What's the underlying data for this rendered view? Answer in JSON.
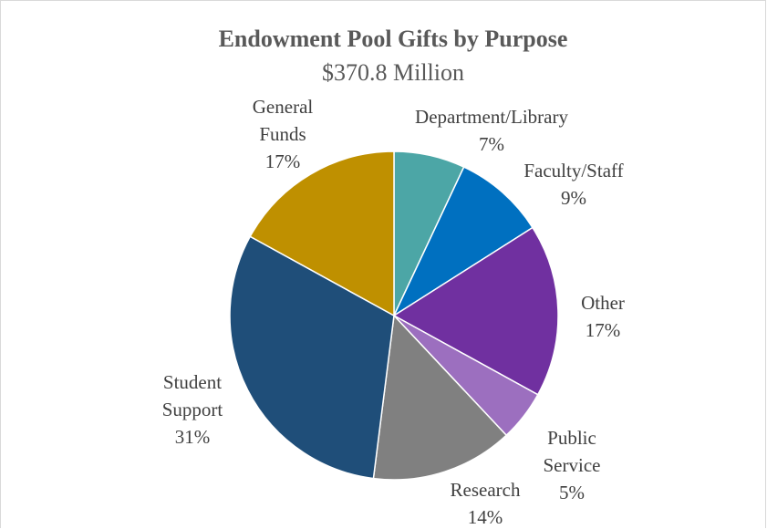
{
  "chart_data": {
    "type": "pie",
    "title": "Endowment Pool Gifts by Purpose",
    "subtitle": "$370.8 Million",
    "start_angle_deg": 0,
    "direction": "clockwise",
    "slices": [
      {
        "label_lines": [
          "Department/Library"
        ],
        "percent_label": "7%",
        "value": 7,
        "color": "#4ca6a6"
      },
      {
        "label_lines": [
          "Faculty/Staff"
        ],
        "percent_label": "9%",
        "value": 9,
        "color": "#0070c0"
      },
      {
        "label_lines": [
          "Other"
        ],
        "percent_label": "17%",
        "value": 17,
        "color": "#7030a0"
      },
      {
        "label_lines": [
          "Public",
          "Service"
        ],
        "percent_label": "5%",
        "value": 5,
        "color": "#9c6fbf"
      },
      {
        "label_lines": [
          "Research"
        ],
        "percent_label": "14%",
        "value": 14,
        "color": "#808080"
      },
      {
        "label_lines": [
          "Student",
          "Support"
        ],
        "percent_label": "31%",
        "value": 31,
        "color": "#1f4e79"
      },
      {
        "label_lines": [
          "General",
          "Funds"
        ],
        "percent_label": "17%",
        "value": 17,
        "color": "#bf9000"
      }
    ]
  }
}
